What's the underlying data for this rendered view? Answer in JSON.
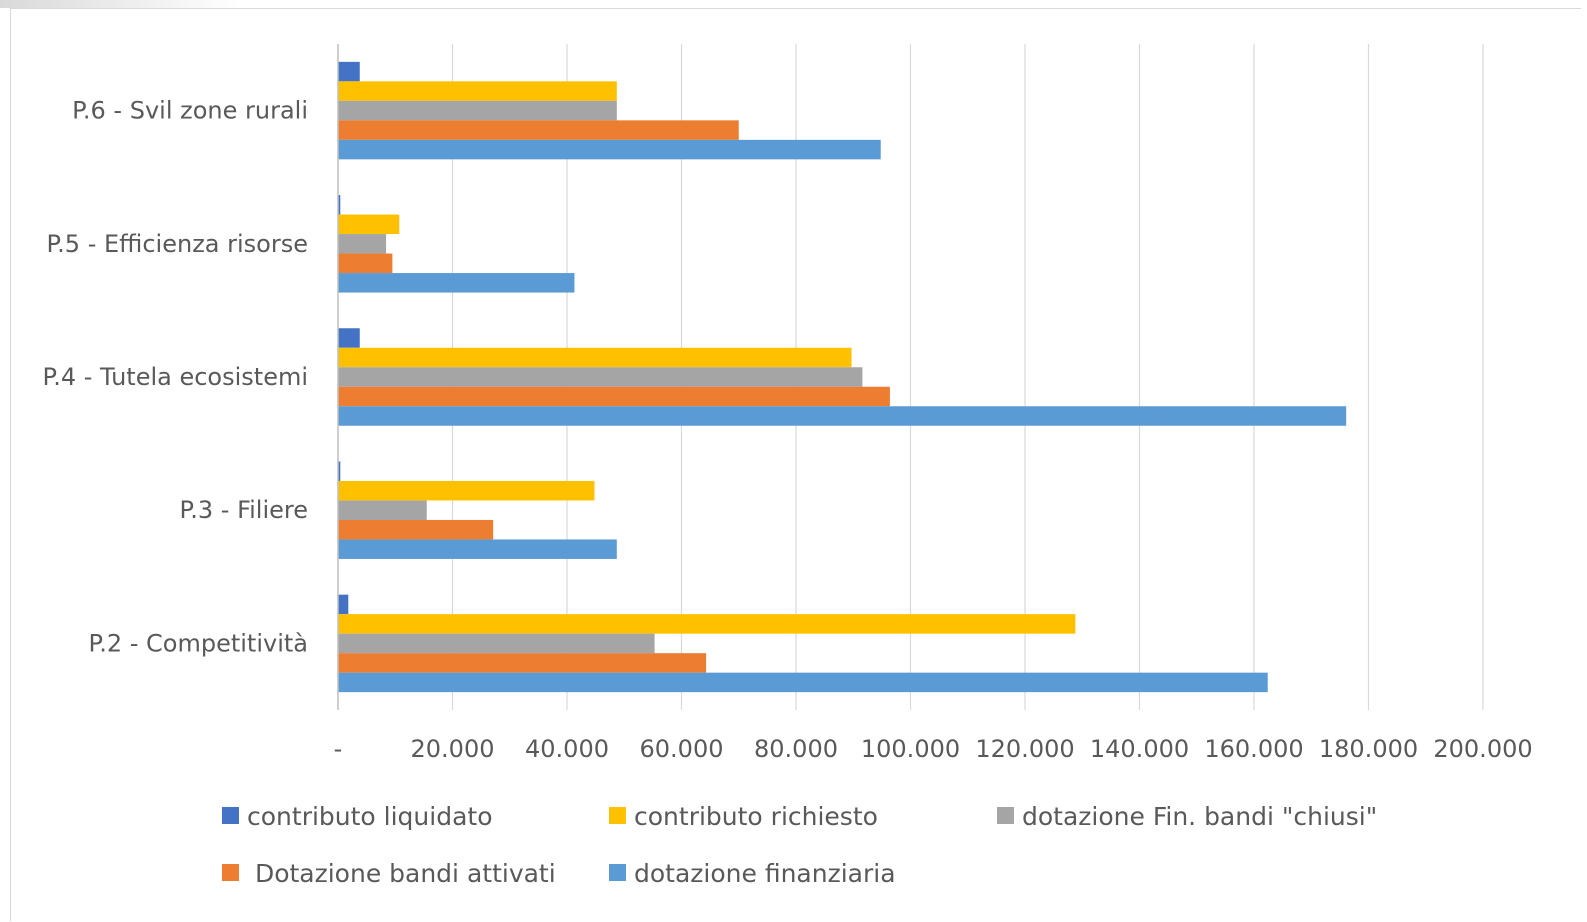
{
  "chart_data": {
    "type": "bar",
    "orientation": "horizontal",
    "categories": [
      "P.2 - Competitività",
      "P.3 - Filiere",
      "P.4 - Tutela ecosistemi",
      "P.5 - Efficienza risorse",
      "P.6 - Svil zone rurali"
    ],
    "series": [
      {
        "name": "contributo liquidato",
        "color": "#4472c4",
        "values": [
          1800,
          400,
          3800,
          400,
          3800
        ]
      },
      {
        "name": "contributo richiesto",
        "color": "#ffc000",
        "values": [
          128800,
          44800,
          89700,
          10700,
          48700
        ]
      },
      {
        "name": "dotazione Fin. bandi \"chiusi\"",
        "color": "#a5a5a5",
        "values": [
          55300,
          15500,
          91600,
          8400,
          48700
        ]
      },
      {
        "name": " Dotazione bandi attivati",
        "color": "#ed7d31",
        "values": [
          64300,
          27100,
          96400,
          9500,
          70000
        ]
      },
      {
        "name": "dotazione finanziaria",
        "color": "#5b9bd5",
        "values": [
          162400,
          48700,
          176100,
          41300,
          94800
        ]
      }
    ],
    "xlim": [
      0,
      200000
    ],
    "x_ticks": [
      0,
      20000,
      40000,
      60000,
      80000,
      100000,
      120000,
      140000,
      160000,
      180000,
      200000
    ],
    "x_tick_labels": [
      "-",
      "20.000",
      "40.000",
      "60.000",
      "80.000",
      "100.000",
      "120.000",
      "140.000",
      "160.000",
      "180.000",
      "200.000"
    ],
    "grid": "vertical",
    "legend_position": "bottom"
  }
}
